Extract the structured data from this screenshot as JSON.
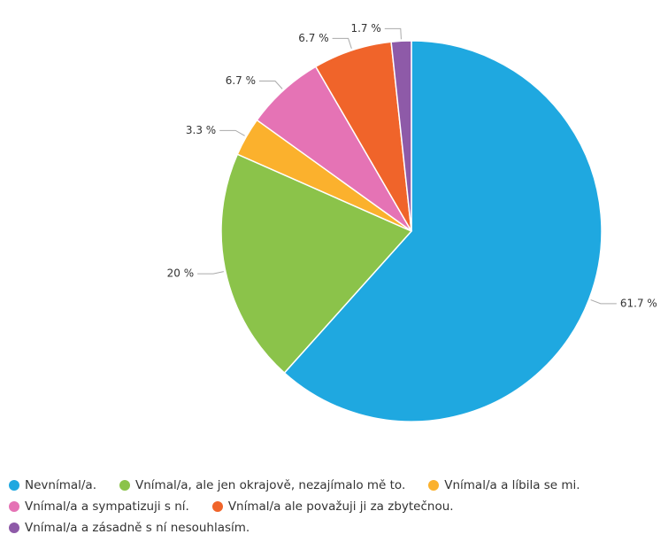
{
  "chart_data": {
    "type": "pie",
    "categories": [
      "Nevnímal/a.",
      "Vnímal/a, ale jen okrajově, nezajímalo mě to.",
      "Vnímal/a a líbila se mi.",
      "Vnímal/a a sympatizuji s ní.",
      "Vnímal/a ale považuji ji za zbytečnou.",
      "Vnímal/a a zásadně s ní nesouhlasím."
    ],
    "values": [
      61.7,
      20,
      3.3,
      6.7,
      6.7,
      1.7
    ],
    "value_labels": [
      "61.7 %",
      "20 %",
      "3.3 %",
      "6.7 %",
      "6.7 %",
      "1.7 %"
    ],
    "colors": [
      "#1fa8e0",
      "#8bc34a",
      "#fbb12d",
      "#e573b5",
      "#f0642a",
      "#8e5aa8"
    ]
  }
}
